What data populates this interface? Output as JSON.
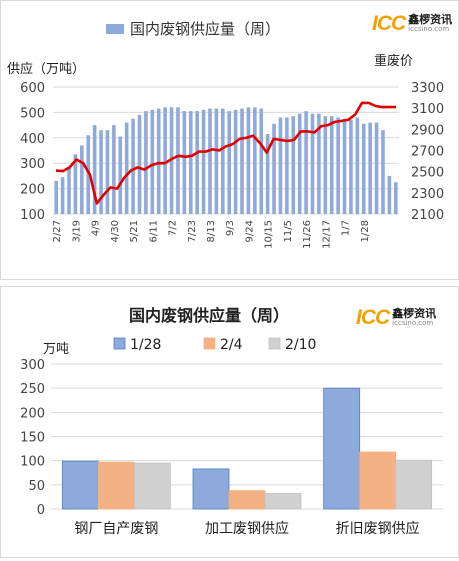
{
  "colors": {
    "bar": "#8ea9db",
    "line": "#e00000",
    "grid": "#d9d9d9",
    "series_1_28": "#4f81bd",
    "series_2_4": "#f4b183",
    "series_2_10": "#c0c0c0",
    "logo": "#f2a100"
  },
  "logo": {
    "mark": "ICC",
    "name": "鑫椤资讯",
    "url": "iccsino.com"
  },
  "chart_data": [
    {
      "type": "bar+line",
      "title": "国内废钢供应量（周）",
      "legend": [
        "国内废钢供应量（周）"
      ],
      "legend_position": "top",
      "ylabel": "供应（万吨）",
      "ylabel_right": "重废价",
      "ylim": [
        100,
        600
      ],
      "yticks": [
        100,
        200,
        300,
        400,
        500,
        600
      ],
      "ylim_right": [
        2100,
        3300
      ],
      "yticks_right": [
        2100,
        2300,
        2500,
        2700,
        2900,
        3100,
        3300
      ],
      "grid": true,
      "xtick_labels": [
        "2/27",
        "3/19",
        "4/9",
        "4/30",
        "5/21",
        "6/11",
        "7/2",
        "7/23",
        "8/13",
        "9/3",
        "9/24",
        "10/15",
        "11/5",
        "11/26",
        "12/17",
        "1/7",
        "1/28"
      ],
      "xtick_positions": [
        0,
        3,
        6,
        9,
        12,
        15,
        18,
        21,
        24,
        27,
        30,
        33,
        36,
        39,
        42,
        45,
        48
      ],
      "bars": [
        230,
        245,
        285,
        335,
        370,
        410,
        450,
        430,
        430,
        450,
        405,
        460,
        475,
        490,
        505,
        510,
        515,
        520,
        520,
        520,
        505,
        505,
        505,
        510,
        515,
        515,
        515,
        505,
        510,
        515,
        520,
        520,
        515,
        415,
        455,
        480,
        480,
        485,
        495,
        505,
        495,
        495,
        485,
        485,
        480,
        475,
        470,
        480,
        455,
        460,
        460,
        430,
        250,
        225
      ],
      "line": [
        2510,
        2505,
        2540,
        2615,
        2580,
        2470,
        2200,
        2280,
        2350,
        2340,
        2440,
        2510,
        2540,
        2520,
        2560,
        2580,
        2580,
        2620,
        2650,
        2640,
        2650,
        2690,
        2690,
        2710,
        2700,
        2740,
        2760,
        2810,
        2820,
        2840,
        2770,
        2680,
        2810,
        2800,
        2790,
        2800,
        2880,
        2880,
        2870,
        2930,
        2940,
        2970,
        2980,
        2990,
        3040,
        3150,
        3150,
        3120,
        3110,
        3110,
        3110
      ]
    },
    {
      "type": "bar",
      "title": "国内废钢供应量（周）",
      "ylabel": "万吨",
      "ylim": [
        0,
        300
      ],
      "yticks": [
        0,
        50,
        100,
        150,
        200,
        250,
        300
      ],
      "grid": true,
      "categories": [
        "钢厂自产废钢",
        "加工废钢供应",
        "折旧废钢供应"
      ],
      "series": [
        {
          "name": "1/28",
          "values": [
            99,
            83,
            250
          ]
        },
        {
          "name": "2/4",
          "values": [
            97,
            38,
            118
          ]
        },
        {
          "name": "2/10",
          "values": [
            95,
            32,
            101
          ]
        }
      ],
      "legend_position": "top"
    }
  ]
}
